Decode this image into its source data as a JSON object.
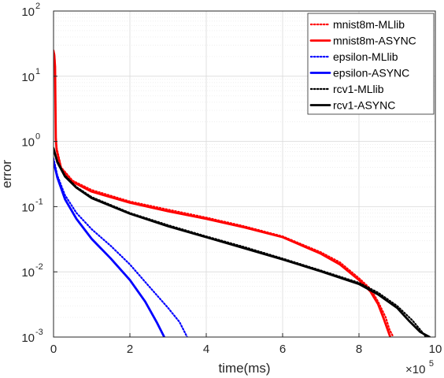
{
  "chart_data": {
    "type": "line",
    "xlabel": "time(ms)",
    "ylabel": "error",
    "xscale": "linear",
    "yscale": "log",
    "x_multiplier_label": {
      "base": "×10",
      "exp": "5"
    },
    "xlim": [
      0,
      1000000
    ],
    "ylim": [
      0.001,
      100
    ],
    "grid": true,
    "legend_position": "top-right",
    "x_ticks": [
      {
        "value": 0,
        "label": "0"
      },
      {
        "value": 200000,
        "label": "2"
      },
      {
        "value": 400000,
        "label": "4"
      },
      {
        "value": 600000,
        "label": "6"
      },
      {
        "value": 800000,
        "label": "8"
      },
      {
        "value": 1000000,
        "label": "10"
      }
    ],
    "y_ticks": [
      {
        "value": 0.001,
        "base": "10",
        "exp": "-3"
      },
      {
        "value": 0.01,
        "base": "10",
        "exp": "-2"
      },
      {
        "value": 0.1,
        "base": "10",
        "exp": "-1"
      },
      {
        "value": 1,
        "base": "10",
        "exp": "0"
      },
      {
        "value": 10,
        "base": "10",
        "exp": "1"
      },
      {
        "value": 100,
        "base": "10",
        "exp": "2"
      }
    ],
    "series": [
      {
        "name": "mnist8m-MLlib",
        "color": "#ff0000",
        "style": "dotted",
        "points": [
          [
            0,
            25
          ],
          [
            2000,
            22
          ],
          [
            4000,
            15
          ],
          [
            6000,
            1.2
          ],
          [
            8000,
            0.8
          ],
          [
            20000,
            0.4
          ],
          [
            50000,
            0.25
          ],
          [
            100000,
            0.18
          ],
          [
            200000,
            0.12
          ],
          [
            300000,
            0.09
          ],
          [
            400000,
            0.068
          ],
          [
            500000,
            0.05
          ],
          [
            600000,
            0.035
          ],
          [
            700000,
            0.02
          ],
          [
            750000,
            0.014
          ],
          [
            800000,
            0.008
          ],
          [
            830000,
            0.0055
          ],
          [
            850000,
            0.0035
          ],
          [
            870000,
            0.002
          ],
          [
            880000,
            0.0013
          ],
          [
            890000,
            0.001
          ]
        ]
      },
      {
        "name": "mnist8m-ASYNC",
        "color": "#ff0000",
        "style": "solid",
        "points": [
          [
            0,
            24
          ],
          [
            2000,
            21
          ],
          [
            4000,
            14
          ],
          [
            6000,
            1.1
          ],
          [
            8000,
            0.75
          ],
          [
            20000,
            0.38
          ],
          [
            50000,
            0.24
          ],
          [
            100000,
            0.17
          ],
          [
            200000,
            0.115
          ],
          [
            300000,
            0.085
          ],
          [
            400000,
            0.065
          ],
          [
            500000,
            0.048
          ],
          [
            600000,
            0.034
          ],
          [
            700000,
            0.019
          ],
          [
            750000,
            0.013
          ],
          [
            800000,
            0.0075
          ],
          [
            830000,
            0.005
          ],
          [
            850000,
            0.0032
          ],
          [
            865000,
            0.0019
          ],
          [
            875000,
            0.0013
          ],
          [
            882000,
            0.001
          ]
        ]
      },
      {
        "name": "epsilon-MLlib",
        "color": "#0000ff",
        "style": "dotted",
        "points": [
          [
            0,
            0.55
          ],
          [
            10000,
            0.3
          ],
          [
            30000,
            0.15
          ],
          [
            60000,
            0.08
          ],
          [
            100000,
            0.045
          ],
          [
            150000,
            0.025
          ],
          [
            200000,
            0.013
          ],
          [
            250000,
            0.006
          ],
          [
            300000,
            0.0028
          ],
          [
            330000,
            0.0017
          ],
          [
            350000,
            0.001
          ]
        ]
      },
      {
        "name": "epsilon-ASYNC",
        "color": "#0000ff",
        "style": "solid",
        "points": [
          [
            0,
            0.5
          ],
          [
            10000,
            0.28
          ],
          [
            30000,
            0.13
          ],
          [
            60000,
            0.065
          ],
          [
            100000,
            0.032
          ],
          [
            150000,
            0.016
          ],
          [
            200000,
            0.0075
          ],
          [
            240000,
            0.0035
          ],
          [
            270000,
            0.0017
          ],
          [
            290000,
            0.001
          ]
        ]
      },
      {
        "name": "rcv1-MLlib",
        "color": "#000000",
        "style": "dotted",
        "points": [
          [
            0,
            0.8
          ],
          [
            10000,
            0.5
          ],
          [
            30000,
            0.3
          ],
          [
            60000,
            0.2
          ],
          [
            100000,
            0.14
          ],
          [
            200000,
            0.08
          ],
          [
            300000,
            0.052
          ],
          [
            400000,
            0.035
          ],
          [
            500000,
            0.024
          ],
          [
            600000,
            0.016
          ],
          [
            700000,
            0.0105
          ],
          [
            800000,
            0.0068
          ],
          [
            850000,
            0.0048
          ],
          [
            900000,
            0.003
          ],
          [
            940000,
            0.0018
          ],
          [
            965000,
            0.0012
          ],
          [
            975000,
            0.001
          ]
        ]
      },
      {
        "name": "rcv1-ASYNC",
        "color": "#000000",
        "style": "solid",
        "points": [
          [
            0,
            0.78
          ],
          [
            10000,
            0.48
          ],
          [
            30000,
            0.29
          ],
          [
            60000,
            0.195
          ],
          [
            100000,
            0.135
          ],
          [
            200000,
            0.078
          ],
          [
            300000,
            0.05
          ],
          [
            400000,
            0.034
          ],
          [
            500000,
            0.023
          ],
          [
            600000,
            0.0155
          ],
          [
            700000,
            0.0102
          ],
          [
            800000,
            0.0065
          ],
          [
            850000,
            0.0045
          ],
          [
            900000,
            0.0028
          ],
          [
            930000,
            0.0018
          ],
          [
            960000,
            0.0012
          ],
          [
            985000,
            0.001
          ]
        ]
      }
    ]
  }
}
